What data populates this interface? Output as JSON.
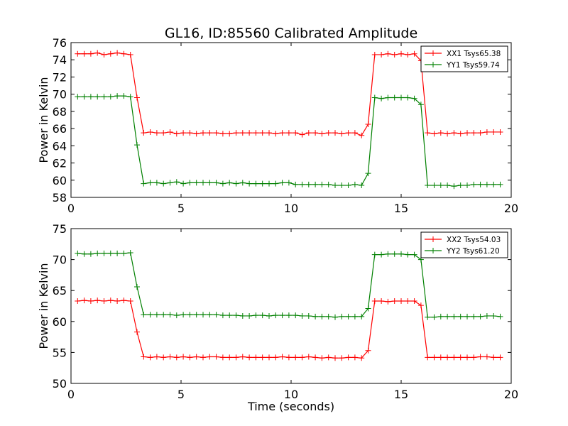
{
  "figure": {
    "title": "GL16, ID:85560 Calibrated Amplitude",
    "xlabel": "Time (seconds)"
  },
  "chart_data": [
    {
      "type": "line",
      "title": "GL16, ID:85560 Calibrated Amplitude",
      "xlabel": "",
      "ylabel": "Power in Kelvin",
      "xlim": [
        0,
        20
      ],
      "ylim": [
        58,
        76
      ],
      "xticks": [
        0,
        5,
        10,
        15,
        20
      ],
      "yticks": [
        58,
        60,
        62,
        64,
        66,
        68,
        70,
        72,
        74,
        76
      ],
      "legend_position": "top-right",
      "grid": false,
      "x": [
        0.3,
        0.6,
        0.9,
        1.2,
        1.5,
        1.8,
        2.1,
        2.4,
        2.7,
        3.0,
        3.3,
        3.6,
        3.9,
        4.2,
        4.5,
        4.8,
        5.1,
        5.4,
        5.7,
        6.0,
        6.3,
        6.6,
        6.9,
        7.2,
        7.5,
        7.8,
        8.1,
        8.4,
        8.7,
        9.0,
        9.3,
        9.6,
        9.9,
        10.2,
        10.5,
        10.8,
        11.1,
        11.4,
        11.7,
        12.0,
        12.3,
        12.6,
        12.9,
        13.2,
        13.5,
        13.8,
        14.1,
        14.4,
        14.7,
        15.0,
        15.3,
        15.6,
        15.9,
        16.2,
        16.5,
        16.8,
        17.1,
        17.4,
        17.7,
        18.0,
        18.3,
        18.6,
        18.9,
        19.2,
        19.5
      ],
      "series": [
        {
          "name": "XX1 Tsys65.38",
          "color": "#ff0000",
          "values": [
            74.7,
            74.7,
            74.7,
            74.8,
            74.6,
            74.7,
            74.8,
            74.7,
            74.6,
            69.6,
            65.5,
            65.6,
            65.5,
            65.5,
            65.6,
            65.4,
            65.5,
            65.5,
            65.4,
            65.5,
            65.5,
            65.5,
            65.4,
            65.4,
            65.5,
            65.5,
            65.5,
            65.5,
            65.5,
            65.5,
            65.4,
            65.5,
            65.5,
            65.5,
            65.3,
            65.5,
            65.5,
            65.4,
            65.5,
            65.5,
            65.4,
            65.5,
            65.5,
            65.2,
            66.5,
            74.6,
            74.6,
            74.7,
            74.6,
            74.7,
            74.6,
            74.7,
            73.9,
            65.5,
            65.4,
            65.5,
            65.4,
            65.5,
            65.4,
            65.5,
            65.5,
            65.5,
            65.6,
            65.6,
            65.6
          ]
        },
        {
          "name": "YY1 Tsys59.74",
          "color": "#008000",
          "values": [
            69.7,
            69.7,
            69.7,
            69.7,
            69.7,
            69.7,
            69.8,
            69.8,
            69.7,
            64.1,
            59.6,
            59.7,
            59.7,
            59.6,
            59.7,
            59.8,
            59.6,
            59.7,
            59.7,
            59.7,
            59.7,
            59.7,
            59.6,
            59.7,
            59.6,
            59.7,
            59.6,
            59.6,
            59.6,
            59.6,
            59.6,
            59.7,
            59.7,
            59.5,
            59.5,
            59.5,
            59.5,
            59.5,
            59.5,
            59.4,
            59.4,
            59.4,
            59.5,
            59.4,
            60.8,
            69.6,
            69.5,
            69.6,
            69.6,
            69.6,
            69.6,
            69.5,
            68.8,
            59.4,
            59.4,
            59.4,
            59.4,
            59.3,
            59.4,
            59.4,
            59.5,
            59.5,
            59.5,
            59.5,
            59.5
          ]
        }
      ]
    },
    {
      "type": "line",
      "title": "",
      "xlabel": "Time (seconds)",
      "ylabel": "Power in Kelvin",
      "xlim": [
        0,
        20
      ],
      "ylim": [
        50,
        75
      ],
      "xticks": [
        0,
        5,
        10,
        15,
        20
      ],
      "yticks": [
        50,
        55,
        60,
        65,
        70,
        75
      ],
      "legend_position": "top-right",
      "grid": false,
      "x": [
        0.3,
        0.6,
        0.9,
        1.2,
        1.5,
        1.8,
        2.1,
        2.4,
        2.7,
        3.0,
        3.3,
        3.6,
        3.9,
        4.2,
        4.5,
        4.8,
        5.1,
        5.4,
        5.7,
        6.0,
        6.3,
        6.6,
        6.9,
        7.2,
        7.5,
        7.8,
        8.1,
        8.4,
        8.7,
        9.0,
        9.3,
        9.6,
        9.9,
        10.2,
        10.5,
        10.8,
        11.1,
        11.4,
        11.7,
        12.0,
        12.3,
        12.6,
        12.9,
        13.2,
        13.5,
        13.8,
        14.1,
        14.4,
        14.7,
        15.0,
        15.3,
        15.6,
        15.9,
        16.2,
        16.5,
        16.8,
        17.1,
        17.4,
        17.7,
        18.0,
        18.3,
        18.6,
        18.9,
        19.2,
        19.5
      ],
      "series": [
        {
          "name": "XX2 Tsys54.03",
          "color": "#ff0000",
          "values": [
            63.3,
            63.4,
            63.3,
            63.4,
            63.3,
            63.4,
            63.3,
            63.4,
            63.3,
            58.3,
            54.3,
            54.2,
            54.3,
            54.2,
            54.3,
            54.2,
            54.3,
            54.2,
            54.3,
            54.2,
            54.3,
            54.3,
            54.2,
            54.2,
            54.2,
            54.3,
            54.2,
            54.2,
            54.2,
            54.2,
            54.2,
            54.3,
            54.2,
            54.2,
            54.2,
            54.3,
            54.2,
            54.1,
            54.2,
            54.1,
            54.1,
            54.2,
            54.2,
            54.1,
            55.3,
            63.3,
            63.3,
            63.2,
            63.3,
            63.3,
            63.3,
            63.3,
            62.6,
            54.2,
            54.2,
            54.2,
            54.2,
            54.2,
            54.2,
            54.2,
            54.2,
            54.3,
            54.3,
            54.2,
            54.2
          ]
        },
        {
          "name": "YY2 Tsys61.20",
          "color": "#008000",
          "values": [
            71.0,
            70.9,
            70.9,
            71.0,
            71.0,
            71.0,
            71.0,
            71.0,
            71.1,
            65.6,
            61.1,
            61.1,
            61.1,
            61.1,
            61.1,
            61.0,
            61.1,
            61.1,
            61.1,
            61.1,
            61.1,
            61.1,
            61.0,
            61.0,
            61.0,
            60.9,
            60.9,
            61.0,
            61.0,
            60.9,
            61.0,
            61.0,
            61.0,
            61.0,
            60.9,
            60.9,
            60.8,
            60.8,
            60.8,
            60.7,
            60.8,
            60.8,
            60.8,
            60.8,
            62.1,
            70.8,
            70.8,
            70.9,
            70.9,
            70.9,
            70.8,
            70.8,
            70.0,
            60.7,
            60.7,
            60.8,
            60.8,
            60.8,
            60.8,
            60.8,
            60.8,
            60.8,
            60.9,
            60.9,
            60.8
          ]
        }
      ]
    }
  ]
}
